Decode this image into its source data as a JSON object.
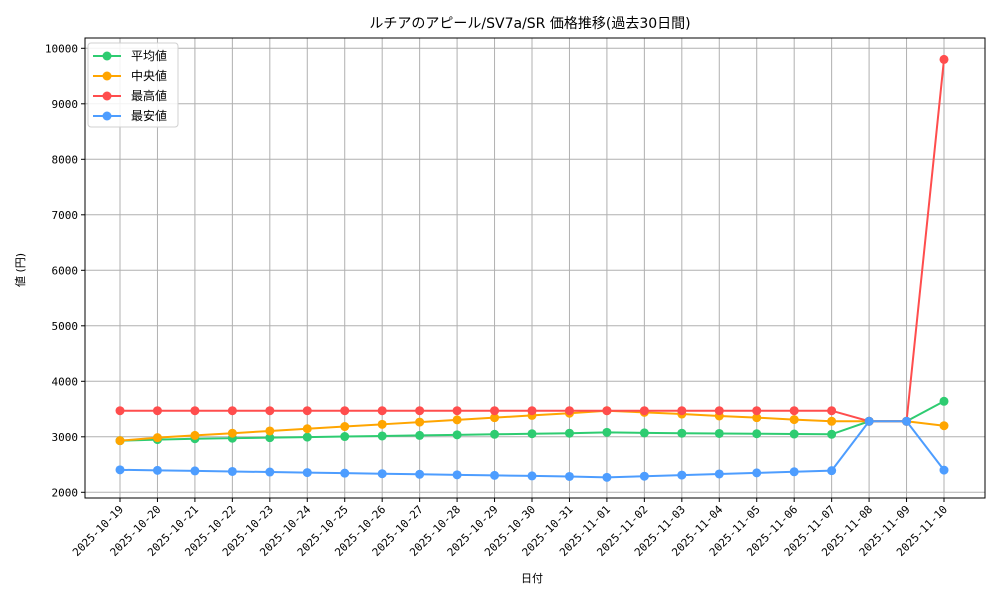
{
  "chart_data": {
    "type": "line",
    "title": "ルチアのアピール/SV7a/SR 価格推移(過去30日間)",
    "xlabel": "日付",
    "ylabel": "値 (円)",
    "ylim": [
      1900,
      10200
    ],
    "yticks": [
      2000,
      3000,
      4000,
      5000,
      6000,
      7000,
      8000,
      9000,
      10000
    ],
    "grid": true,
    "legend_position": "upper left",
    "x": [
      "2025-10-19",
      "2025-10-20",
      "2025-10-21",
      "2025-10-22",
      "2025-10-23",
      "2025-10-24",
      "2025-10-25",
      "2025-10-26",
      "2025-10-27",
      "2025-10-28",
      "2025-10-29",
      "2025-10-30",
      "2025-10-31",
      "2025-11-01",
      "2025-11-02",
      "2025-11-03",
      "2025-11-04",
      "2025-11-05",
      "2025-11-06",
      "2025-11-07",
      "2025-11-08",
      "2025-11-09",
      "2025-11-10"
    ],
    "series": [
      {
        "name": "平均値",
        "color": "#2ecc71",
        "values": [
          2930,
          2950,
          2965,
          2975,
          2985,
          2995,
          3005,
          3015,
          3025,
          3035,
          3045,
          3055,
          3065,
          3080,
          3070,
          3065,
          3060,
          3055,
          3050,
          3045,
          3280,
          3280,
          3640
        ]
      },
      {
        "name": "中央値",
        "color": "#ffa500",
        "values": [
          2930,
          2985,
          3025,
          3065,
          3105,
          3145,
          3185,
          3225,
          3265,
          3305,
          3345,
          3385,
          3425,
          3470,
          3440,
          3410,
          3375,
          3345,
          3310,
          3280,
          3280,
          3280,
          3200
        ]
      },
      {
        "name": "最高値",
        "color": "#ff4d4d",
        "values": [
          3470,
          3470,
          3470,
          3470,
          3470,
          3470,
          3470,
          3470,
          3470,
          3470,
          3470,
          3470,
          3470,
          3470,
          3470,
          3470,
          3470,
          3470,
          3470,
          3470,
          3280,
          3280,
          9800
        ]
      },
      {
        "name": "最安値",
        "color": "#4d9dff",
        "values": [
          2405,
          2395,
          2385,
          2375,
          2365,
          2355,
          2345,
          2335,
          2325,
          2315,
          2305,
          2295,
          2285,
          2270,
          2290,
          2310,
          2330,
          2350,
          2370,
          2390,
          3280,
          3280,
          2400
        ]
      }
    ]
  }
}
